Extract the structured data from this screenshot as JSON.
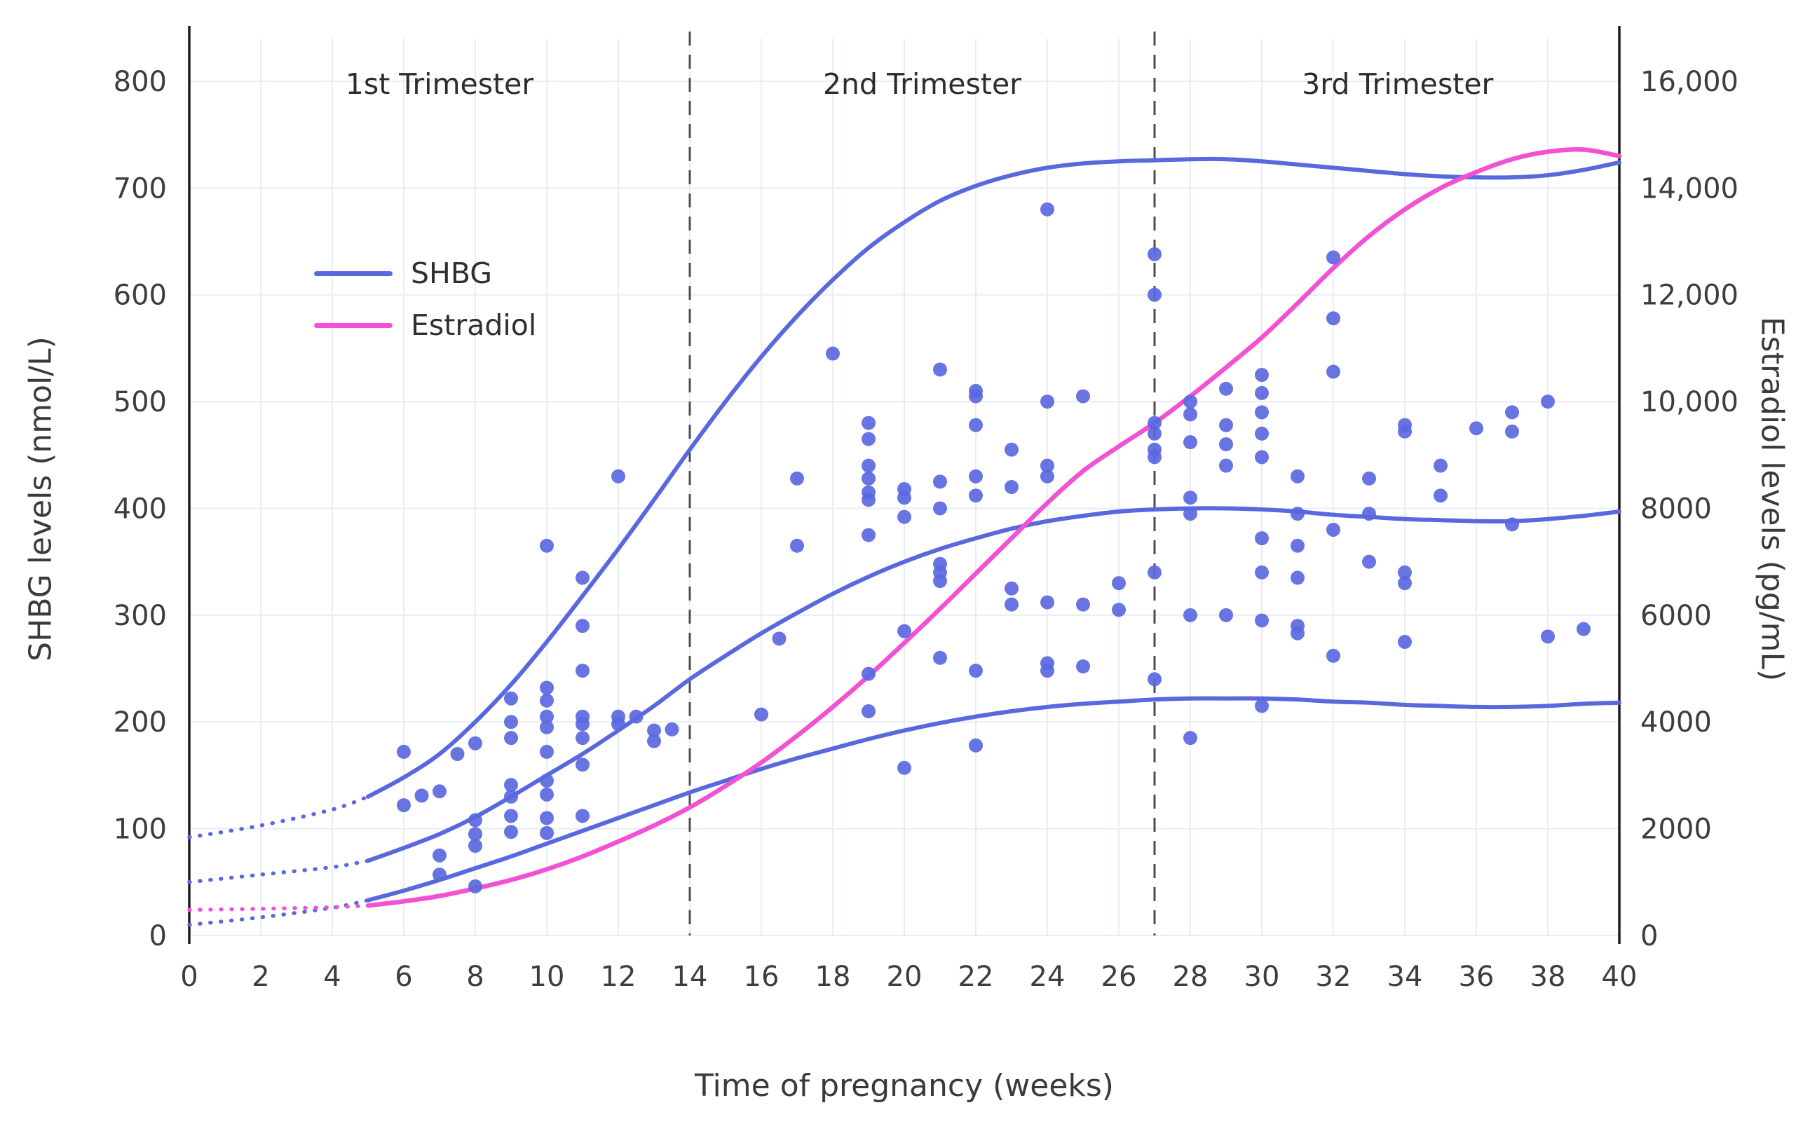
{
  "chart_data": {
    "type": "scatter",
    "title": "",
    "xlabel": "Time of pregnancy (weeks)",
    "ylabel_left": "SHBG levels (nmol/L)",
    "ylabel_right": "Estradiol levels (pg/mL)",
    "xlim": [
      0,
      40
    ],
    "ylim_left": [
      0,
      840
    ],
    "ylim_right": [
      0,
      16800
    ],
    "right_axis_ratio": 20,
    "grid": true,
    "x_ticks": [
      0,
      2,
      4,
      6,
      8,
      10,
      12,
      14,
      16,
      18,
      20,
      22,
      24,
      26,
      28,
      30,
      32,
      34,
      36,
      38,
      40
    ],
    "y_left_ticks": [
      0,
      100,
      200,
      300,
      400,
      500,
      600,
      700,
      800
    ],
    "y_right_ticks": [
      [
        0,
        "0"
      ],
      [
        2000,
        "2000"
      ],
      [
        4000,
        "4000"
      ],
      [
        6000,
        "6000"
      ],
      [
        8000,
        "8000"
      ],
      [
        10000,
        "10,000"
      ],
      [
        12000,
        "12,000"
      ],
      [
        14000,
        "14,000"
      ],
      [
        16000,
        "16,000"
      ]
    ],
    "trimester_dividers": [
      14,
      27
    ],
    "annotations": [
      {
        "label": "1st Trimester",
        "x_week": 7
      },
      {
        "label": "2nd Trimester",
        "x_week": 20.5
      },
      {
        "label": "3rd Trimester",
        "x_week": 33.8
      }
    ],
    "legend": [
      {
        "label": "SHBG",
        "color": "shbg"
      },
      {
        "label": "Estradiol",
        "color": "estradiol"
      }
    ],
    "colors": {
      "shbg": "#5a68df",
      "estradiol": "#f351d4",
      "grid": "#e8ecf7",
      "axis": "#1b1b1b",
      "divider": "#4d4d4d",
      "text": "#3d3d3d"
    },
    "curves": [
      {
        "name": "shbg-upper",
        "color": "shbg",
        "axis": "left",
        "width": 6,
        "points": [
          [
            5,
            130
          ],
          [
            6,
            148
          ],
          [
            7,
            170
          ],
          [
            8,
            200
          ],
          [
            9,
            235
          ],
          [
            10,
            275
          ],
          [
            11,
            318
          ],
          [
            12,
            362
          ],
          [
            13,
            408
          ],
          [
            14,
            455
          ],
          [
            15,
            500
          ],
          [
            16,
            542
          ],
          [
            17,
            580
          ],
          [
            18,
            614
          ],
          [
            19,
            644
          ],
          [
            20,
            668
          ],
          [
            21,
            688
          ],
          [
            22,
            702
          ],
          [
            23,
            712
          ],
          [
            24,
            719
          ],
          [
            25,
            723
          ],
          [
            26,
            725
          ],
          [
            27,
            726
          ],
          [
            28,
            727
          ],
          [
            29,
            727
          ],
          [
            30,
            725
          ],
          [
            31,
            722
          ],
          [
            32,
            719
          ],
          [
            33,
            716
          ],
          [
            34,
            713
          ],
          [
            35,
            711
          ],
          [
            36,
            710
          ],
          [
            37,
            710
          ],
          [
            38,
            712
          ],
          [
            39,
            717
          ],
          [
            40,
            724
          ]
        ]
      },
      {
        "name": "shbg-median",
        "color": "shbg",
        "axis": "left",
        "width": 6,
        "points": [
          [
            5,
            70
          ],
          [
            6,
            82
          ],
          [
            7,
            95
          ],
          [
            8,
            111
          ],
          [
            9,
            130
          ],
          [
            10,
            150
          ],
          [
            11,
            170
          ],
          [
            12,
            192
          ],
          [
            13,
            215
          ],
          [
            14,
            240
          ],
          [
            15,
            262
          ],
          [
            16,
            283
          ],
          [
            17,
            302
          ],
          [
            18,
            320
          ],
          [
            19,
            336
          ],
          [
            20,
            350
          ],
          [
            21,
            362
          ],
          [
            22,
            372
          ],
          [
            23,
            381
          ],
          [
            24,
            388
          ],
          [
            25,
            393
          ],
          [
            26,
            397
          ],
          [
            27,
            399
          ],
          [
            28,
            400
          ],
          [
            29,
            400
          ],
          [
            30,
            399
          ],
          [
            31,
            397
          ],
          [
            32,
            394
          ],
          [
            33,
            392
          ],
          [
            34,
            390
          ],
          [
            35,
            389
          ],
          [
            36,
            388
          ],
          [
            37,
            388
          ],
          [
            38,
            390
          ],
          [
            39,
            393
          ],
          [
            40,
            397
          ]
        ]
      },
      {
        "name": "shbg-lower",
        "color": "shbg",
        "axis": "left",
        "width": 6,
        "points": [
          [
            5,
            33
          ],
          [
            6,
            42
          ],
          [
            7,
            52
          ],
          [
            8,
            63
          ],
          [
            9,
            74
          ],
          [
            10,
            86
          ],
          [
            11,
            98
          ],
          [
            12,
            110
          ],
          [
            13,
            122
          ],
          [
            14,
            134
          ],
          [
            15,
            145
          ],
          [
            16,
            156
          ],
          [
            17,
            166
          ],
          [
            18,
            175
          ],
          [
            19,
            184
          ],
          [
            20,
            192
          ],
          [
            21,
            199
          ],
          [
            22,
            205
          ],
          [
            23,
            210
          ],
          [
            24,
            214
          ],
          [
            25,
            217
          ],
          [
            26,
            219
          ],
          [
            27,
            221
          ],
          [
            28,
            222
          ],
          [
            29,
            222
          ],
          [
            30,
            222
          ],
          [
            31,
            221
          ],
          [
            32,
            219
          ],
          [
            33,
            218
          ],
          [
            34,
            216
          ],
          [
            35,
            215
          ],
          [
            36,
            214
          ],
          [
            37,
            214
          ],
          [
            38,
            215
          ],
          [
            39,
            217
          ],
          [
            40,
            218
          ]
        ]
      },
      {
        "name": "estradiol-mean",
        "color": "estradiol",
        "axis": "right",
        "width": 6.5,
        "points": [
          [
            5,
            560
          ],
          [
            6,
            640
          ],
          [
            7,
            740
          ],
          [
            8,
            880
          ],
          [
            9,
            1040
          ],
          [
            10,
            1240
          ],
          [
            11,
            1480
          ],
          [
            12,
            1760
          ],
          [
            13,
            2060
          ],
          [
            14,
            2400
          ],
          [
            15,
            2800
          ],
          [
            16,
            3240
          ],
          [
            17,
            3740
          ],
          [
            18,
            4280
          ],
          [
            19,
            4860
          ],
          [
            20,
            5480
          ],
          [
            21,
            6120
          ],
          [
            22,
            6780
          ],
          [
            23,
            7440
          ],
          [
            24,
            8100
          ],
          [
            25,
            8700
          ],
          [
            26,
            9160
          ],
          [
            27,
            9600
          ],
          [
            28,
            10100
          ],
          [
            29,
            10640
          ],
          [
            30,
            11200
          ],
          [
            31,
            11840
          ],
          [
            32,
            12500
          ],
          [
            33,
            13100
          ],
          [
            34,
            13600
          ],
          [
            35,
            14000
          ],
          [
            36,
            14300
          ],
          [
            37,
            14540
          ],
          [
            38,
            14680
          ],
          [
            39,
            14720
          ],
          [
            40,
            14600
          ]
        ]
      }
    ],
    "dotted_leadins": [
      {
        "name": "shbg-upper-extrapolated",
        "color": "shbg",
        "axis": "left",
        "points": [
          [
            0,
            92
          ],
          [
            2,
            103
          ],
          [
            4,
            118
          ],
          [
            5,
            130
          ]
        ]
      },
      {
        "name": "shbg-median-extrapolated",
        "color": "shbg",
        "axis": "left",
        "points": [
          [
            0,
            50
          ],
          [
            2,
            57
          ],
          [
            4,
            64
          ],
          [
            5,
            70
          ]
        ]
      },
      {
        "name": "shbg-lower-extrapolated",
        "color": "shbg",
        "axis": "left",
        "points": [
          [
            0,
            10
          ],
          [
            2,
            17
          ],
          [
            4,
            26
          ],
          [
            5,
            33
          ]
        ]
      },
      {
        "name": "estradiol-extrapolated",
        "color": "estradiol",
        "axis": "right",
        "points": [
          [
            0,
            480
          ],
          [
            2,
            500
          ],
          [
            4,
            530
          ],
          [
            5,
            560
          ]
        ]
      }
    ],
    "scatter": {
      "name": "shbg-individual-measurements",
      "color": "shbg",
      "radius": 10,
      "points": [
        [
          6,
          122
        ],
        [
          6,
          172
        ],
        [
          6.5,
          131
        ],
        [
          7,
          57
        ],
        [
          7,
          75
        ],
        [
          7,
          135
        ],
        [
          7.5,
          170
        ],
        [
          8,
          46
        ],
        [
          8,
          84
        ],
        [
          8,
          95
        ],
        [
          8,
          108
        ],
        [
          8,
          180
        ],
        [
          9,
          97
        ],
        [
          9,
          112
        ],
        [
          9,
          130
        ],
        [
          9,
          141
        ],
        [
          9,
          185
        ],
        [
          9,
          200
        ],
        [
          9,
          222
        ],
        [
          10,
          96
        ],
        [
          10,
          110
        ],
        [
          10,
          132
        ],
        [
          10,
          145
        ],
        [
          10,
          172
        ],
        [
          10,
          195
        ],
        [
          10,
          205
        ],
        [
          10,
          220
        ],
        [
          10,
          232
        ],
        [
          10,
          365
        ],
        [
          11,
          112
        ],
        [
          11,
          160
        ],
        [
          11,
          185
        ],
        [
          11,
          198
        ],
        [
          11,
          205
        ],
        [
          11,
          248
        ],
        [
          11,
          290
        ],
        [
          11,
          335
        ],
        [
          12,
          198
        ],
        [
          12,
          205
        ],
        [
          12,
          430
        ],
        [
          12.5,
          205
        ],
        [
          13,
          182
        ],
        [
          13,
          192
        ],
        [
          13.5,
          193
        ],
        [
          16,
          207
        ],
        [
          16.5,
          278
        ],
        [
          17,
          365
        ],
        [
          17,
          428
        ],
        [
          18,
          545
        ],
        [
          19,
          210
        ],
        [
          19,
          245
        ],
        [
          19,
          375
        ],
        [
          19,
          408
        ],
        [
          19,
          415
        ],
        [
          19,
          428
        ],
        [
          19,
          440
        ],
        [
          19,
          465
        ],
        [
          19,
          480
        ],
        [
          20,
          157
        ],
        [
          20,
          285
        ],
        [
          20,
          392
        ],
        [
          20,
          410
        ],
        [
          20,
          418
        ],
        [
          21,
          260
        ],
        [
          21,
          332
        ],
        [
          21,
          340
        ],
        [
          21,
          348
        ],
        [
          21,
          400
        ],
        [
          21,
          425
        ],
        [
          21,
          530
        ],
        [
          22,
          178
        ],
        [
          22,
          248
        ],
        [
          22,
          412
        ],
        [
          22,
          430
        ],
        [
          22,
          478
        ],
        [
          22,
          505
        ],
        [
          22,
          510
        ],
        [
          23,
          310
        ],
        [
          23,
          325
        ],
        [
          23,
          420
        ],
        [
          23,
          455
        ],
        [
          24,
          248
        ],
        [
          24,
          255
        ],
        [
          24,
          312
        ],
        [
          24,
          430
        ],
        [
          24,
          440
        ],
        [
          24,
          500
        ],
        [
          24,
          680
        ],
        [
          25,
          252
        ],
        [
          25,
          310
        ],
        [
          25,
          505
        ],
        [
          26,
          305
        ],
        [
          26,
          330
        ],
        [
          27,
          240
        ],
        [
          27,
          340
        ],
        [
          27,
          448
        ],
        [
          27,
          455
        ],
        [
          27,
          470
        ],
        [
          27,
          480
        ],
        [
          27,
          600
        ],
        [
          27,
          638
        ],
        [
          28,
          185
        ],
        [
          28,
          300
        ],
        [
          28,
          395
        ],
        [
          28,
          410
        ],
        [
          28,
          462
        ],
        [
          28,
          488
        ],
        [
          28,
          500
        ],
        [
          29,
          300
        ],
        [
          29,
          440
        ],
        [
          29,
          460
        ],
        [
          29,
          478
        ],
        [
          29,
          512
        ],
        [
          30,
          215
        ],
        [
          30,
          295
        ],
        [
          30,
          340
        ],
        [
          30,
          372
        ],
        [
          30,
          448
        ],
        [
          30,
          470
        ],
        [
          30,
          490
        ],
        [
          30,
          508
        ],
        [
          30,
          525
        ],
        [
          31,
          283
        ],
        [
          31,
          290
        ],
        [
          31,
          335
        ],
        [
          31,
          365
        ],
        [
          31,
          395
        ],
        [
          31,
          430
        ],
        [
          32,
          262
        ],
        [
          32,
          380
        ],
        [
          32,
          528
        ],
        [
          32,
          578
        ],
        [
          32,
          635
        ],
        [
          33,
          350
        ],
        [
          33,
          395
        ],
        [
          33,
          428
        ],
        [
          34,
          275
        ],
        [
          34,
          330
        ],
        [
          34,
          340
        ],
        [
          34,
          472
        ],
        [
          34,
          478
        ],
        [
          35,
          412
        ],
        [
          35,
          440
        ],
        [
          36,
          475
        ],
        [
          37,
          385
        ],
        [
          37,
          472
        ],
        [
          37,
          490
        ],
        [
          38,
          280
        ],
        [
          38,
          500
        ],
        [
          39,
          287
        ]
      ]
    }
  }
}
